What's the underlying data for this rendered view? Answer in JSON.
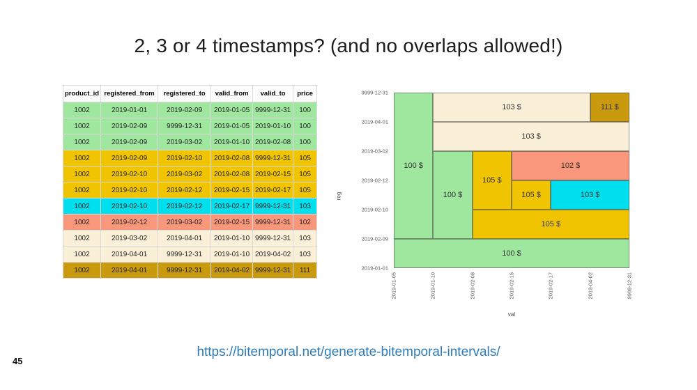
{
  "title": "2, 3 or 4 timestamps? (and no overlaps allowed!)",
  "colors": {
    "green": "#9fe69f",
    "gold": "#f0c400",
    "cyan": "#00dfee",
    "salmon": "#f9977c",
    "cream": "#faf0d8",
    "darkgold": "#c9990e"
  },
  "table": {
    "headers": [
      "product_id",
      "registered_from",
      "registered_to",
      "valid_from",
      "valid_to",
      "price"
    ],
    "rows": [
      {
        "color": "green",
        "cells": [
          "1002",
          "2019-01-01",
          "2019-02-09",
          "2019-01-05",
          "9999-12-31",
          "100"
        ]
      },
      {
        "color": "green",
        "cells": [
          "1002",
          "2019-02-09",
          "9999-12-31",
          "2019-01-05",
          "2019-01-10",
          "100"
        ]
      },
      {
        "color": "green",
        "cells": [
          "1002",
          "2019-02-09",
          "2019-03-02",
          "2019-01-10",
          "2019-02-08",
          "100"
        ]
      },
      {
        "color": "gold",
        "cells": [
          "1002",
          "2019-02-09",
          "2019-02-10",
          "2019-02-08",
          "9999-12-31",
          "105"
        ]
      },
      {
        "color": "gold",
        "cells": [
          "1002",
          "2019-02-10",
          "2019-03-02",
          "2019-02-08",
          "2019-02-15",
          "105"
        ]
      },
      {
        "color": "gold",
        "cells": [
          "1002",
          "2019-02-10",
          "2019-02-12",
          "2019-02-15",
          "2019-02-17",
          "105"
        ]
      },
      {
        "color": "cyan",
        "cells": [
          "1002",
          "2019-02-10",
          "2019-02-12",
          "2019-02-17",
          "9999-12-31",
          "103"
        ]
      },
      {
        "color": "salmon",
        "cells": [
          "1002",
          "2019-02-12",
          "2019-03-02",
          "2019-02-15",
          "9999-12-31",
          "102"
        ]
      },
      {
        "color": "cream",
        "cells": [
          "1002",
          "2019-03-02",
          "2019-04-01",
          "2019-01-10",
          "9999-12-31",
          "103"
        ]
      },
      {
        "color": "cream",
        "cells": [
          "1002",
          "2019-04-01",
          "9999-12-31",
          "2019-01-10",
          "2019-04-02",
          "103"
        ]
      },
      {
        "color": "darkgold",
        "cells": [
          "1002",
          "2019-04-01",
          "9999-12-31",
          "2019-04-02",
          "9999-12-31",
          "111"
        ]
      }
    ]
  },
  "chart_data": {
    "type": "heatmap",
    "note": "bitemporal interval tiling: x = valid time (val), y = registered time (reg), tile label = price",
    "xlabel": "val",
    "ylabel": "reg",
    "x_ticks": [
      "2019-01-05",
      "2019-01-10",
      "2019-02-08",
      "2019-02-15",
      "2019-02-17",
      "2019-04-02",
      "9999-12-31"
    ],
    "y_ticks": [
      "2019-01-01",
      "2019-02-09",
      "2019-02-10",
      "2019-02-12",
      "2019-03-02",
      "2019-04-01",
      "9999-12-31"
    ],
    "rects": [
      {
        "label": "100 $",
        "color": "green",
        "val_from": "2019-01-05",
        "val_to": "9999-12-31",
        "reg_from": "2019-01-01",
        "reg_to": "2019-02-09"
      },
      {
        "label": "100 $",
        "color": "green",
        "val_from": "2019-01-05",
        "val_to": "2019-01-10",
        "reg_from": "2019-02-09",
        "reg_to": "9999-12-31"
      },
      {
        "label": "100 $",
        "color": "green",
        "val_from": "2019-01-10",
        "val_to": "2019-02-08",
        "reg_from": "2019-02-09",
        "reg_to": "2019-03-02"
      },
      {
        "label": "105 $",
        "color": "gold",
        "val_from": "2019-02-08",
        "val_to": "9999-12-31",
        "reg_from": "2019-02-09",
        "reg_to": "2019-02-10"
      },
      {
        "label": "105 $",
        "color": "gold",
        "val_from": "2019-02-08",
        "val_to": "2019-02-15",
        "reg_from": "2019-02-10",
        "reg_to": "2019-03-02"
      },
      {
        "label": "105 $",
        "color": "gold",
        "val_from": "2019-02-15",
        "val_to": "2019-02-17",
        "reg_from": "2019-02-10",
        "reg_to": "2019-02-12"
      },
      {
        "label": "103 $",
        "color": "cyan",
        "val_from": "2019-02-17",
        "val_to": "9999-12-31",
        "reg_from": "2019-02-10",
        "reg_to": "2019-02-12"
      },
      {
        "label": "102 $",
        "color": "salmon",
        "val_from": "2019-02-15",
        "val_to": "9999-12-31",
        "reg_from": "2019-02-12",
        "reg_to": "2019-03-02"
      },
      {
        "label": "103 $",
        "color": "cream",
        "val_from": "2019-01-10",
        "val_to": "9999-12-31",
        "reg_from": "2019-03-02",
        "reg_to": "2019-04-01"
      },
      {
        "label": "103 $",
        "color": "cream",
        "val_from": "2019-01-10",
        "val_to": "2019-04-02",
        "reg_from": "2019-04-01",
        "reg_to": "9999-12-31"
      },
      {
        "label": "111 $",
        "color": "darkgold",
        "val_from": "2019-04-02",
        "val_to": "9999-12-31",
        "reg_from": "2019-04-01",
        "reg_to": "9999-12-31"
      }
    ]
  },
  "footer": {
    "url": "https://bitemporal.net/generate-bitemporal-intervals/",
    "page_number": "45"
  }
}
